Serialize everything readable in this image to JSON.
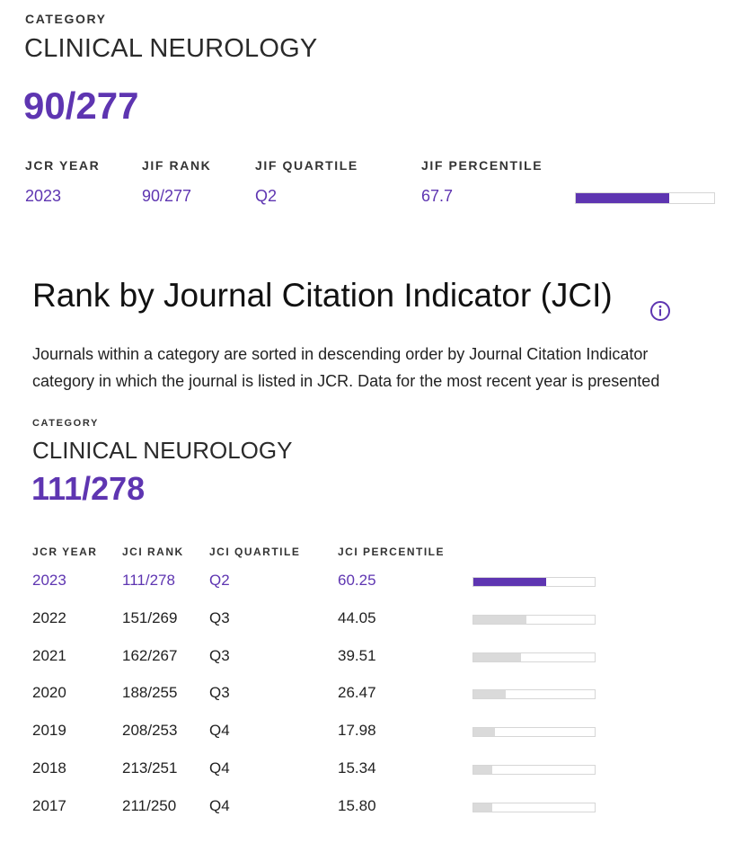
{
  "colors": {
    "accent": "#5e35b1",
    "bar_track_border": "#d6d6d6",
    "bar_inactive": "#dadada"
  },
  "jif": {
    "category_label": "CATEGORY",
    "category_name": "CLINICAL NEUROLOGY",
    "rank_big": "90/277",
    "headers": {
      "year": "JCR YEAR",
      "rank": "JIF RANK",
      "quartile": "JIF QUARTILE",
      "percentile": "JIF PERCENTILE"
    },
    "row": {
      "year": "2023",
      "rank": "90/277",
      "quartile": "Q2",
      "percentile": "67.7",
      "percentile_value": 67.7
    }
  },
  "jci": {
    "title": "Rank by Journal Citation Indicator (JCI)",
    "info_icon": "info-circle-icon",
    "description_lines": [
      "Journals within a category are sorted in descending order by Journal Citation Indicator",
      "category in which the journal is listed in JCR. Data for the most recent year is presented"
    ],
    "category_label": "CATEGORY",
    "category_name": "CLINICAL NEUROLOGY",
    "rank_big": "111/278",
    "headers": {
      "year": "JCR YEAR",
      "rank": "JCI RANK",
      "quartile": "JCI QUARTILE",
      "percentile": "JCI PERCENTILE"
    },
    "rows": [
      {
        "year": "2023",
        "rank": "111/278",
        "quartile": "Q2",
        "percentile": "60.25",
        "percentile_value": 60.25
      },
      {
        "year": "2022",
        "rank": "151/269",
        "quartile": "Q3",
        "percentile": "44.05",
        "percentile_value": 44.05
      },
      {
        "year": "2021",
        "rank": "162/267",
        "quartile": "Q3",
        "percentile": "39.51",
        "percentile_value": 39.51
      },
      {
        "year": "2020",
        "rank": "188/255",
        "quartile": "Q3",
        "percentile": "26.47",
        "percentile_value": 26.47
      },
      {
        "year": "2019",
        "rank": "208/253",
        "quartile": "Q4",
        "percentile": "17.98",
        "percentile_value": 17.98
      },
      {
        "year": "2018",
        "rank": "213/251",
        "quartile": "Q4",
        "percentile": "15.34",
        "percentile_value": 15.34
      },
      {
        "year": "2017",
        "rank": "211/250",
        "quartile": "Q4",
        "percentile": "15.80",
        "percentile_value": 15.8
      }
    ]
  }
}
